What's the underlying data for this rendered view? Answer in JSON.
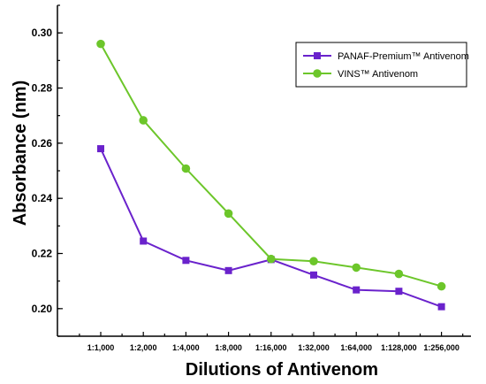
{
  "chart_data": {
    "type": "line",
    "title": "",
    "xlabel": "Dilutions of Antivenom",
    "ylabel": "Absorbance (nm)",
    "categories": [
      "1:1,000",
      "1:2,000",
      "1:4,000",
      "1:8,000",
      "1:16,000",
      "1:32,000",
      "1:64,000",
      "1:128,000",
      "1:256,000"
    ],
    "ylim": [
      0.19,
      0.31
    ],
    "yticks": [
      "0.20",
      "0.22",
      "0.24",
      "0.26",
      "0.28",
      "0.30"
    ],
    "grid": false,
    "legend_position": "top-right",
    "series": [
      {
        "name": "PANAF-Premium™ Antivenom",
        "color": "#6a22cc",
        "marker": "square",
        "values": [
          0.258,
          0.2245,
          0.2175,
          0.2138,
          0.2178,
          0.2122,
          0.2068,
          0.2063,
          0.2007
        ]
      },
      {
        "name": "VINS™ Antivenom",
        "color": "#6cc62a",
        "marker": "circle",
        "values": [
          0.296,
          0.2683,
          0.2508,
          0.2345,
          0.218,
          0.2172,
          0.2149,
          0.2126,
          0.2081
        ]
      }
    ]
  }
}
